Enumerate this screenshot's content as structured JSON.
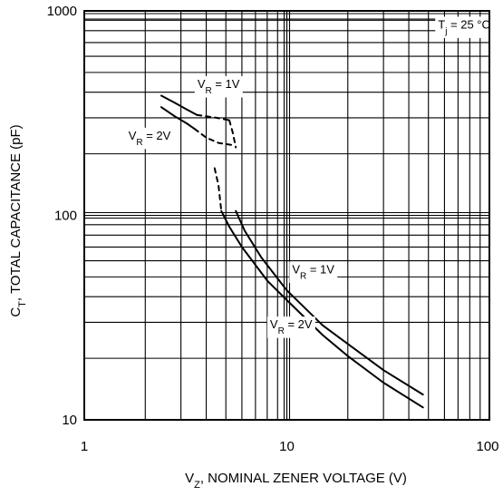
{
  "chart_data": {
    "type": "line",
    "x_scale": "log",
    "y_scale": "log",
    "xlim": [
      1,
      100
    ],
    "ylim": [
      10,
      1000
    ],
    "grid": true,
    "title": "",
    "xlabel": {
      "main": "V",
      "sub": "Z",
      "rest": ", NOMINAL ZENER VOLTAGE (V)"
    },
    "ylabel": {
      "main": "C",
      "sub": "T",
      "rest": ", TOTAL CAPACITANCE (pF)"
    },
    "x_ticks": [
      {
        "value": 1,
        "label": "1"
      },
      {
        "value": 10,
        "label": "10"
      },
      {
        "value": 100,
        "label": "100"
      }
    ],
    "y_ticks": [
      {
        "value": 10,
        "label": "10"
      },
      {
        "value": 100,
        "label": "100"
      },
      {
        "value": 1000,
        "label": "1000"
      }
    ],
    "annotations": [
      {
        "main": "T",
        "sub": "j",
        "rest": " = 25 °C",
        "x": 75,
        "y": 820
      },
      {
        "main": "V",
        "sub": "R",
        "rest": " = 1V",
        "x": 4.6,
        "y": 420
      },
      {
        "main": "V",
        "sub": "R",
        "rest": " = 2V",
        "x": 2.1,
        "y": 235
      },
      {
        "main": "V",
        "sub": "R",
        "rest": " = 1V",
        "x": 13.5,
        "y": 52
      },
      {
        "main": "V",
        "sub": "R",
        "rest": " = 2V",
        "x": 10.5,
        "y": 28
      }
    ],
    "series": [
      {
        "curve": "VR=1V",
        "segments": [
          {
            "style": "solid",
            "points": [
              [
                2.4,
                385
              ],
              [
                2.8,
                355
              ],
              [
                3.2,
                330
              ],
              [
                3.6,
                310
              ]
            ]
          },
          {
            "style": "dashed",
            "points": [
              [
                3.6,
                310
              ],
              [
                4.0,
                305
              ],
              [
                4.5,
                300
              ],
              [
                5.2,
                292
              ]
            ]
          },
          {
            "style": "dashed",
            "points": [
              [
                5.2,
                292
              ],
              [
                5.4,
                255
              ],
              [
                5.6,
                215
              ]
            ]
          },
          {
            "style": "solid",
            "points": [
              [
                5.6,
                105
              ],
              [
                6.2,
                84
              ],
              [
                7.5,
                62
              ],
              [
                10,
                43
              ],
              [
                15,
                29
              ],
              [
                20,
                23.5
              ],
              [
                30,
                17.5
              ],
              [
                47,
                13.3
              ]
            ]
          }
        ]
      },
      {
        "curve": "VR=2V",
        "segments": [
          {
            "style": "solid",
            "points": [
              [
                2.4,
                338
              ],
              [
                2.8,
                305
              ],
              [
                3.2,
                282
              ],
              [
                3.5,
                265
              ]
            ]
          },
          {
            "style": "dashed",
            "points": [
              [
                3.5,
                265
              ],
              [
                4.0,
                240
              ],
              [
                4.6,
                226
              ],
              [
                5.5,
                220
              ]
            ]
          },
          {
            "style": "dashed",
            "points": [
              [
                4.4,
                170
              ],
              [
                4.6,
                140
              ],
              [
                4.75,
                105
              ]
            ]
          },
          {
            "style": "solid",
            "points": [
              [
                4.75,
                105
              ],
              [
                5.2,
                88
              ],
              [
                6.0,
                70
              ],
              [
                8.0,
                48
              ],
              [
                10,
                38.5
              ],
              [
                15,
                26
              ],
              [
                20,
                20.5
              ],
              [
                30,
                15.2
              ],
              [
                47,
                11.5
              ]
            ]
          }
        ]
      }
    ],
    "background": "#ffffff",
    "line_color": "#000000"
  }
}
